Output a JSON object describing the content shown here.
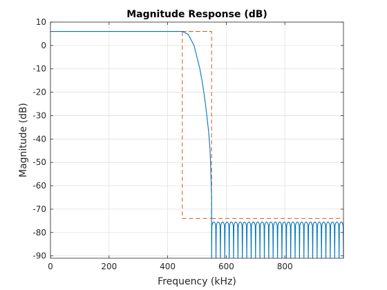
{
  "chart_data": {
    "type": "line",
    "title": "Magnitude Response (dB)",
    "xlabel": "Frequency (kHz)",
    "ylabel": "Magnitude (dB)",
    "xlim": [
      0,
      1000
    ],
    "ylim": [
      -91,
      10
    ],
    "x_ticks": [
      0,
      200,
      400,
      600,
      800
    ],
    "y_ticks": [
      10,
      0,
      -10,
      -20,
      -30,
      -40,
      -50,
      -60,
      -70,
      -80,
      -90
    ],
    "grid": true,
    "colors": {
      "response": "#0072BD",
      "mask": "#D95319",
      "grid": "#DFDFDF",
      "axes": "#262626"
    },
    "passband": {
      "x_end": 450,
      "gain_db": 6
    },
    "transition": {
      "x": [
        450,
        470,
        490,
        510,
        520,
        530,
        540,
        545,
        550
      ],
      "y": [
        6,
        4.8,
        0,
        -10,
        -17,
        -26,
        -37,
        -45,
        -65
      ]
    },
    "stopband": {
      "x_start": 550,
      "x_end": 1000,
      "ripple_top_db": -75.5,
      "ripple_count": 30,
      "floor_db": -91
    },
    "mask": {
      "passband_box": {
        "x": [
          450,
          550
        ],
        "y": [
          -74,
          6
        ]
      },
      "upper": {
        "x": [
          0,
          550
        ],
        "y": 6
      },
      "stop_limit": {
        "x": [
          550,
          1000
        ],
        "y": -74
      }
    }
  }
}
